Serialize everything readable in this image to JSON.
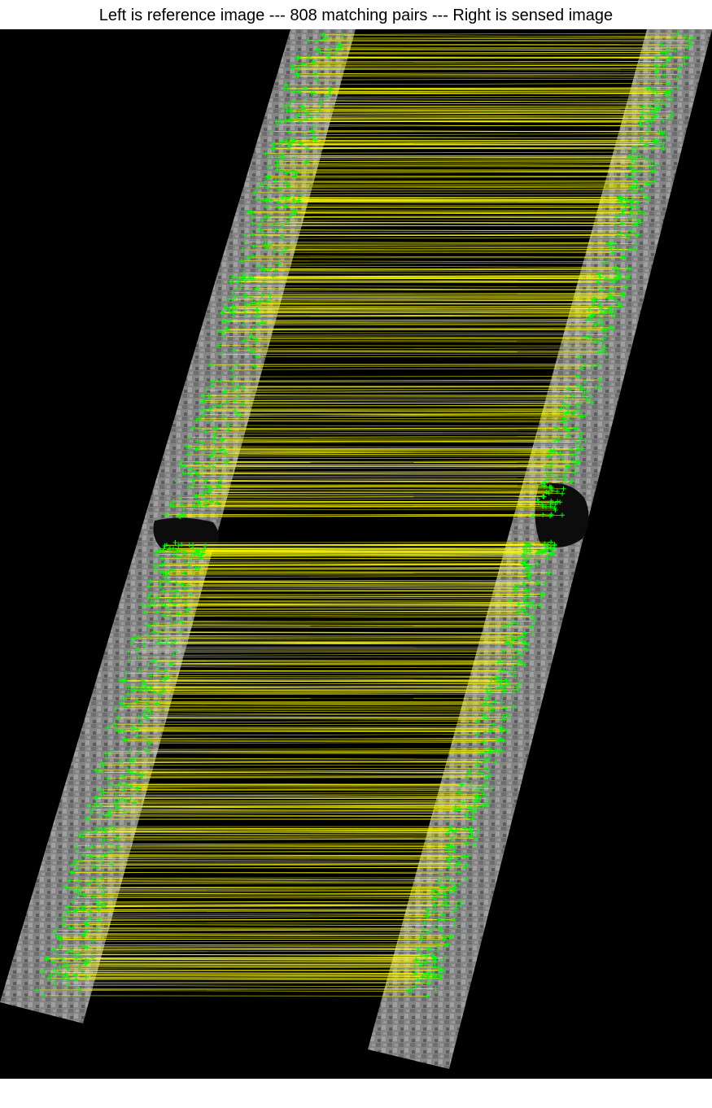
{
  "figure": {
    "title": "Left is reference image --- 808 matching pairs --- Right is sensed image",
    "match_count": 808
  },
  "colors": {
    "background": "#000000",
    "page": "#ffffff",
    "match_line": "#ffff00",
    "keypoint": "#00ff00",
    "strip": "#8a8a8a"
  },
  "icons": {
    "keypoint_marker": "plus-marker"
  }
}
